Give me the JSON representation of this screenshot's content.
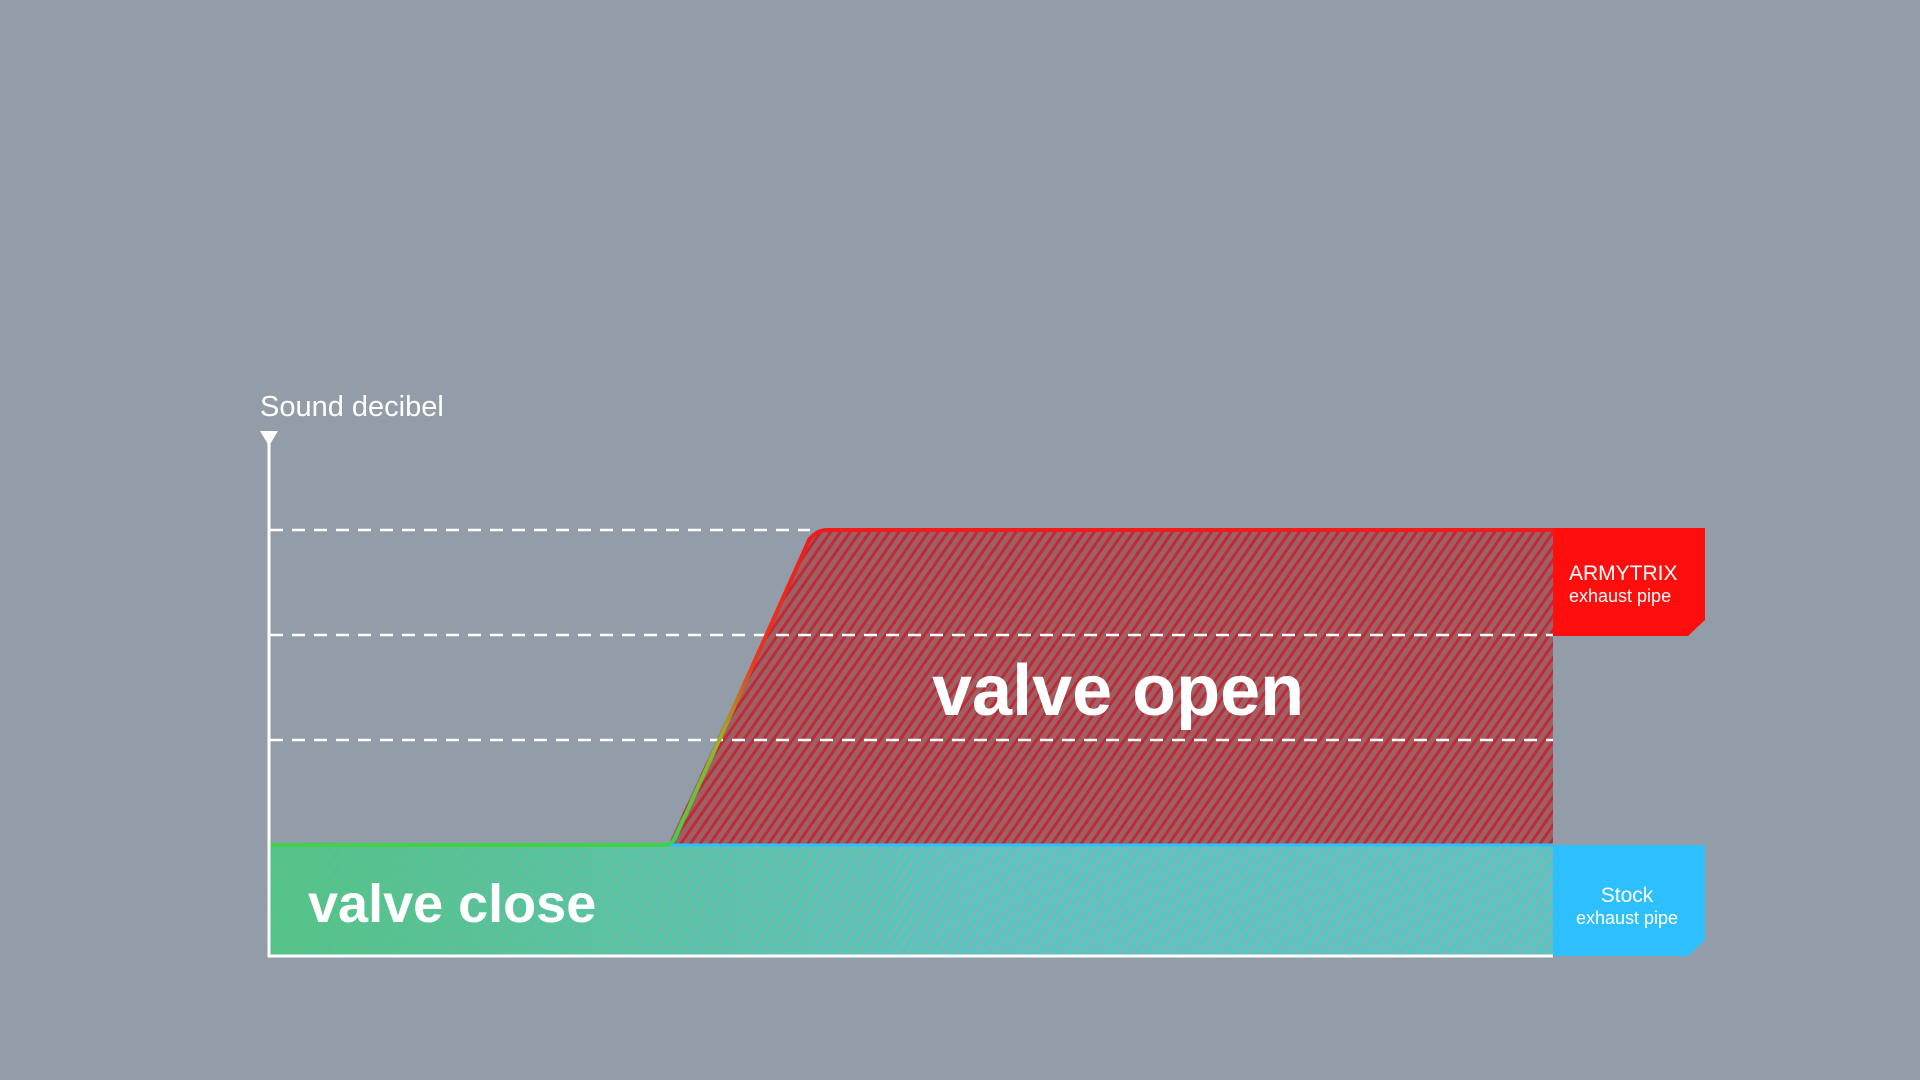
{
  "diagram": {
    "y_axis_label": "Sound decibel",
    "regions": {
      "open_label": "valve open",
      "close_label": "valve close"
    },
    "legend": {
      "armytrix": {
        "title": "ARMYTRIX",
        "subtitle": "exhaust pipe",
        "color": "#ff0e0e"
      },
      "stock": {
        "title": "Stock",
        "subtitle": "exhaust pipe",
        "color": "#2ebfff"
      }
    },
    "colors": {
      "background": "#939ca9",
      "axis": "#ffffff",
      "open_line": "#ee1c1c",
      "transition_line_start": "#3fd14a",
      "close_fill": "#5fc0b6",
      "open_fill": "#b0474d"
    }
  }
}
